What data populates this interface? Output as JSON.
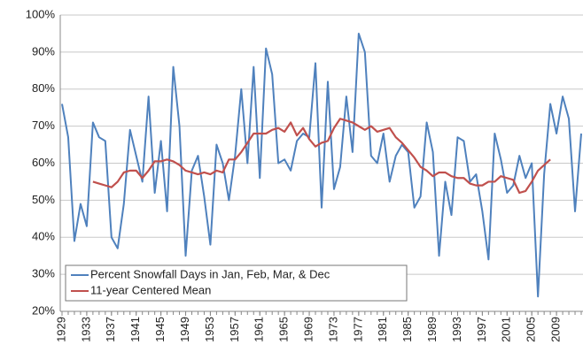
{
  "chart_data": {
    "type": "line",
    "x": [
      1929,
      1930,
      1931,
      1932,
      1933,
      1934,
      1935,
      1936,
      1937,
      1938,
      1939,
      1940,
      1941,
      1942,
      1943,
      1944,
      1945,
      1946,
      1947,
      1948,
      1949,
      1950,
      1951,
      1952,
      1953,
      1954,
      1955,
      1956,
      1957,
      1958,
      1959,
      1960,
      1961,
      1962,
      1963,
      1964,
      1965,
      1966,
      1967,
      1968,
      1969,
      1970,
      1971,
      1972,
      1973,
      1974,
      1975,
      1976,
      1977,
      1978,
      1979,
      1980,
      1981,
      1982,
      1983,
      1984,
      1985,
      1986,
      1987,
      1988,
      1989,
      1990,
      1991,
      1992,
      1993,
      1994,
      1995,
      1996,
      1997,
      1998,
      1999,
      2000,
      2001,
      2002,
      2003,
      2004,
      2005,
      2006,
      2007,
      2008,
      2009,
      2010,
      2011,
      2012,
      2013
    ],
    "series": [
      {
        "name": "Percent Snowfall Days in Jan, Feb, Mar, & Dec",
        "color": "#4f81bd",
        "values": [
          76,
          67,
          39,
          49,
          43,
          71,
          67,
          66,
          40,
          37,
          49,
          69,
          62,
          55,
          78,
          52,
          66,
          47,
          86,
          70,
          35,
          58,
          62,
          51,
          38,
          65,
          60,
          50,
          62,
          80,
          60,
          86,
          56,
          91,
          84,
          60,
          61,
          58,
          66,
          68,
          67,
          87,
          48,
          82,
          53,
          59,
          78,
          63,
          95,
          90,
          62,
          60,
          68,
          55,
          62,
          65,
          63,
          48,
          51,
          71,
          63,
          35,
          55,
          46,
          67,
          66,
          55,
          57,
          47,
          34,
          68,
          61,
          52,
          54,
          62,
          56,
          60,
          24,
          57,
          76,
          68,
          78,
          72,
          47,
          68
        ]
      },
      {
        "name": "11-year Centered Mean",
        "color": "#c0504d",
        "values": [
          null,
          null,
          null,
          null,
          null,
          55,
          54.5,
          54,
          53.5,
          55,
          57.5,
          58,
          58,
          56,
          58,
          60.5,
          60.5,
          61,
          60.5,
          59.5,
          58,
          57.5,
          57,
          57.5,
          57,
          58,
          57.5,
          61,
          61,
          63,
          65.5,
          68,
          68,
          68,
          69,
          69.5,
          68.5,
          71,
          67.5,
          69.5,
          66.5,
          64.5,
          65.5,
          66,
          69.5,
          72,
          71.5,
          71,
          70,
          69,
          70,
          68.5,
          69,
          69.5,
          67,
          65.5,
          63.5,
          61.5,
          59,
          58,
          56.5,
          57.5,
          57.5,
          56.5,
          56,
          56,
          54.5,
          54,
          54,
          55,
          55,
          56.5,
          56,
          55.5,
          52,
          52.5,
          55,
          58,
          59.5,
          61,
          null,
          null,
          null,
          null,
          null
        ]
      }
    ],
    "xlim": [
      1929,
      2013
    ],
    "xticks": [
      1929,
      1933,
      1937,
      1941,
      1945,
      1949,
      1953,
      1957,
      1961,
      1965,
      1969,
      1973,
      1977,
      1981,
      1985,
      1989,
      1993,
      1997,
      2001,
      2005,
      2009
    ],
    "ylim": [
      20,
      100
    ],
    "yticks": [
      {
        "value": 20,
        "label": "20%"
      },
      {
        "value": 30,
        "label": "30%"
      },
      {
        "value": 40,
        "label": "40%"
      },
      {
        "value": 50,
        "label": "50%"
      },
      {
        "value": 60,
        "label": "60%"
      },
      {
        "value": 70,
        "label": "70%"
      },
      {
        "value": 80,
        "label": "80%"
      },
      {
        "value": 90,
        "label": "90%"
      },
      {
        "value": 100,
        "label": "100%"
      }
    ],
    "grid": true,
    "legend": "lower-left"
  }
}
